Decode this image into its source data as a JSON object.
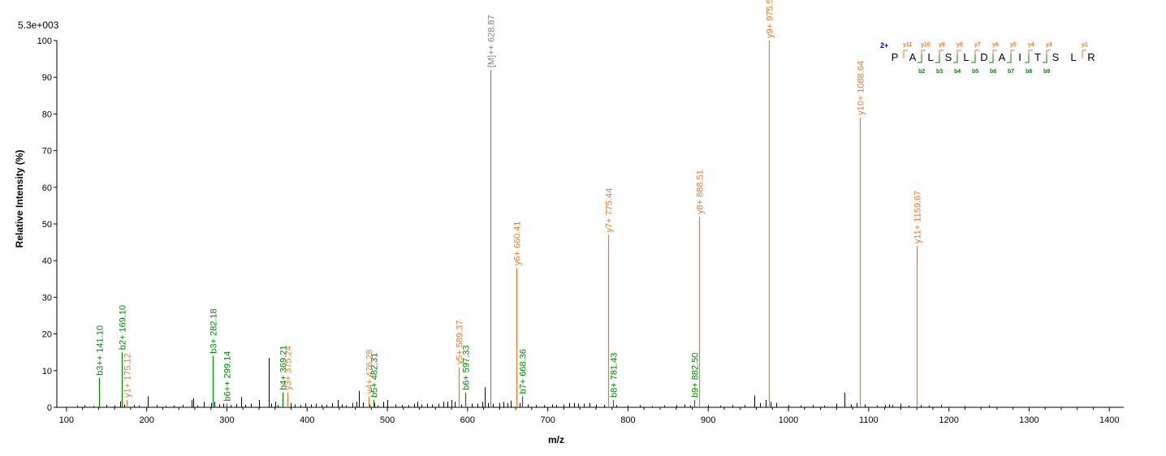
{
  "chart_data": {
    "type": "bar",
    "scale_label": "5.3e+003",
    "ylabel": "Relative   Intensity (%)",
    "xlabel": "m/z",
    "xlim": [
      88,
      1418
    ],
    "ylim": [
      0,
      100
    ],
    "x_ticks": [
      100,
      200,
      300,
      400,
      500,
      600,
      700,
      800,
      900,
      1000,
      1100,
      1200,
      1300,
      1400
    ],
    "y_ticks": [
      0,
      10,
      20,
      30,
      40,
      50,
      60,
      70,
      80,
      90,
      100
    ],
    "colors": {
      "b": "#008000",
      "y": "#e07a2e",
      "precursor": "#808080",
      "unannotated": "#000000"
    },
    "annotated_peaks": [
      {
        "mz": 141.1,
        "intensity": 8,
        "label": "b3++ 141.10",
        "ion": "b"
      },
      {
        "mz": 169.1,
        "intensity": 15,
        "label": "b2+ 169.10",
        "ion": "b"
      },
      {
        "mz": 175.12,
        "intensity": 2,
        "label": "y1+ 175.12",
        "ion": "y"
      },
      {
        "mz": 282.18,
        "intensity": 14,
        "label": "b3+ 282.18",
        "ion": "b"
      },
      {
        "mz": 299.14,
        "intensity": 1,
        "label": "b6++ 299.14",
        "ion": "b"
      },
      {
        "mz": 369.21,
        "intensity": 4,
        "label": "b4+ 369.21",
        "ion": "b"
      },
      {
        "mz": 375.24,
        "intensity": 4,
        "label": "y3+ 375.24",
        "ion": "y"
      },
      {
        "mz": 476.28,
        "intensity": 3,
        "label": "y4+ 476.28",
        "ion": "y"
      },
      {
        "mz": 482.31,
        "intensity": 2,
        "label": "b5+ 482.31",
        "ion": "b"
      },
      {
        "mz": 589.37,
        "intensity": 11,
        "label": "y5+ 589.37",
        "ion": "y"
      },
      {
        "mz": 597.33,
        "intensity": 4,
        "label": "b6+ 597.33",
        "ion": "b"
      },
      {
        "mz": 628.87,
        "intensity": 92,
        "label": "[M]++ 628.87",
        "ion": "precursor"
      },
      {
        "mz": 660.41,
        "intensity": 38,
        "label": "y6+ 660.41",
        "ion": "y"
      },
      {
        "mz": 668.36,
        "intensity": 3,
        "label": "b7+ 668.36",
        "ion": "b"
      },
      {
        "mz": 775.44,
        "intensity": 47,
        "label": "y7+ 775.44",
        "ion": "y"
      },
      {
        "mz": 781.43,
        "intensity": 2,
        "label": "b8+ 781.43",
        "ion": "b"
      },
      {
        "mz": 882.5,
        "intensity": 2,
        "label": "b9+ 882.50",
        "ion": "b"
      },
      {
        "mz": 888.51,
        "intensity": 52,
        "label": "y8+ 888.51",
        "ion": "y"
      },
      {
        "mz": 975.55,
        "intensity": 100,
        "label": "y9+ 975.55",
        "ion": "y"
      },
      {
        "mz": 1088.64,
        "intensity": 79,
        "label": "y10+ 1088.64",
        "ion": "y"
      },
      {
        "mz": 1159.67,
        "intensity": 44,
        "label": "y11+ 1159.67",
        "ion": "y"
      }
    ],
    "unannotated_peaks": [
      [
        113,
        0.5
      ],
      [
        122,
        0.6
      ],
      [
        134,
        0.4
      ],
      [
        150,
        0.7
      ],
      [
        160,
        0.5
      ],
      [
        167,
        1.6
      ],
      [
        172,
        0.8
      ],
      [
        184,
        0.6
      ],
      [
        190,
        0.5
      ],
      [
        201,
        3
      ],
      [
        213,
        0.6
      ],
      [
        224,
        0.4
      ],
      [
        234,
        0.5
      ],
      [
        245,
        0.7
      ],
      [
        256,
        2
      ],
      [
        258,
        2.5
      ],
      [
        263,
        0.5
      ],
      [
        271,
        1.5
      ],
      [
        280,
        1.2
      ],
      [
        284,
        1.5
      ],
      [
        290,
        0.8
      ],
      [
        295,
        1
      ],
      [
        305,
        0.6
      ],
      [
        312,
        0.9
      ],
      [
        318,
        2.8
      ],
      [
        323,
        0.7
      ],
      [
        330,
        1
      ],
      [
        340,
        2
      ],
      [
        352,
        13.5
      ],
      [
        355,
        1
      ],
      [
        360,
        1.5
      ],
      [
        363,
        0.6
      ],
      [
        380,
        1.2
      ],
      [
        385,
        0.8
      ],
      [
        392,
        0.6
      ],
      [
        398,
        1.1
      ],
      [
        405,
        0.8
      ],
      [
        411,
        1
      ],
      [
        418,
        0.7
      ],
      [
        424,
        0.7
      ],
      [
        431,
        1.2
      ],
      [
        438,
        2
      ],
      [
        443,
        0.8
      ],
      [
        448,
        0.5
      ],
      [
        456,
        1.2
      ],
      [
        461,
        1.5
      ],
      [
        465,
        4.5
      ],
      [
        470,
        1.3
      ],
      [
        478,
        0.8
      ],
      [
        484,
        1.2
      ],
      [
        488,
        0.5
      ],
      [
        495,
        1.5
      ],
      [
        500,
        2
      ],
      [
        510,
        0.8
      ],
      [
        518,
        0.6
      ],
      [
        526,
        0.6
      ],
      [
        533,
        1
      ],
      [
        537,
        1.5
      ],
      [
        542,
        0.8
      ],
      [
        550,
        1
      ],
      [
        556,
        0.8
      ],
      [
        564,
        1
      ],
      [
        570,
        1.5
      ],
      [
        575,
        1.5
      ],
      [
        580,
        2
      ],
      [
        584,
        1.5
      ],
      [
        592,
        0.8
      ],
      [
        605,
        1
      ],
      [
        612,
        1
      ],
      [
        618,
        1.5
      ],
      [
        621,
        5.5
      ],
      [
        625,
        1.2
      ],
      [
        632,
        1
      ],
      [
        640,
        1.2
      ],
      [
        645,
        1.5
      ],
      [
        650,
        1.2
      ],
      [
        654,
        1.8
      ],
      [
        665,
        1.2
      ],
      [
        675,
        0.8
      ],
      [
        685,
        0.6
      ],
      [
        695,
        0.6
      ],
      [
        705,
        0.8
      ],
      [
        710,
        0.6
      ],
      [
        720,
        0.8
      ],
      [
        727,
        1.2
      ],
      [
        733,
        1.2
      ],
      [
        738,
        1
      ],
      [
        745,
        1
      ],
      [
        752,
        1.2
      ],
      [
        760,
        0.8
      ],
      [
        770,
        0.7
      ],
      [
        785,
        0.6
      ],
      [
        800,
        0.5
      ],
      [
        815,
        0.6
      ],
      [
        830,
        0.4
      ],
      [
        845,
        0.5
      ],
      [
        860,
        0.6
      ],
      [
        870,
        0.8
      ],
      [
        878,
        0.5
      ],
      [
        900,
        0.6
      ],
      [
        915,
        0.5
      ],
      [
        930,
        0.6
      ],
      [
        945,
        0.6
      ],
      [
        957,
        3.2
      ],
      [
        965,
        1.2
      ],
      [
        972,
        2
      ],
      [
        978,
        1.5
      ],
      [
        985,
        1.2
      ],
      [
        1000,
        0.6
      ],
      [
        1015,
        0.5
      ],
      [
        1030,
        0.6
      ],
      [
        1045,
        0.5
      ],
      [
        1060,
        1
      ],
      [
        1070,
        4
      ],
      [
        1078,
        0.8
      ],
      [
        1085,
        1.2
      ],
      [
        1095,
        0.8
      ],
      [
        1110,
        0.5
      ],
      [
        1120,
        0.6
      ],
      [
        1125,
        0.8
      ],
      [
        1130,
        0.6
      ],
      [
        1140,
        1
      ],
      [
        1150,
        0.5
      ],
      [
        1165,
        0.6
      ],
      [
        1175,
        0.5
      ],
      [
        1190,
        0.6
      ],
      [
        1220,
        0.4
      ],
      [
        1250,
        0.5
      ]
    ],
    "sequence": {
      "charge": "2+",
      "residues": [
        "P",
        "A",
        "L",
        "S",
        "L",
        "D",
        "A",
        "I",
        "T",
        "S",
        "L",
        "R"
      ],
      "y_ions": [
        "y11",
        "y10",
        "y9",
        "y8",
        "y7",
        "y6",
        "y5",
        "y4",
        "y3",
        "",
        "y1"
      ],
      "b_ions": [
        "",
        "b2",
        "b3",
        "b4",
        "b5",
        "b6",
        "b7",
        "b8",
        "b9",
        "",
        ""
      ]
    }
  }
}
